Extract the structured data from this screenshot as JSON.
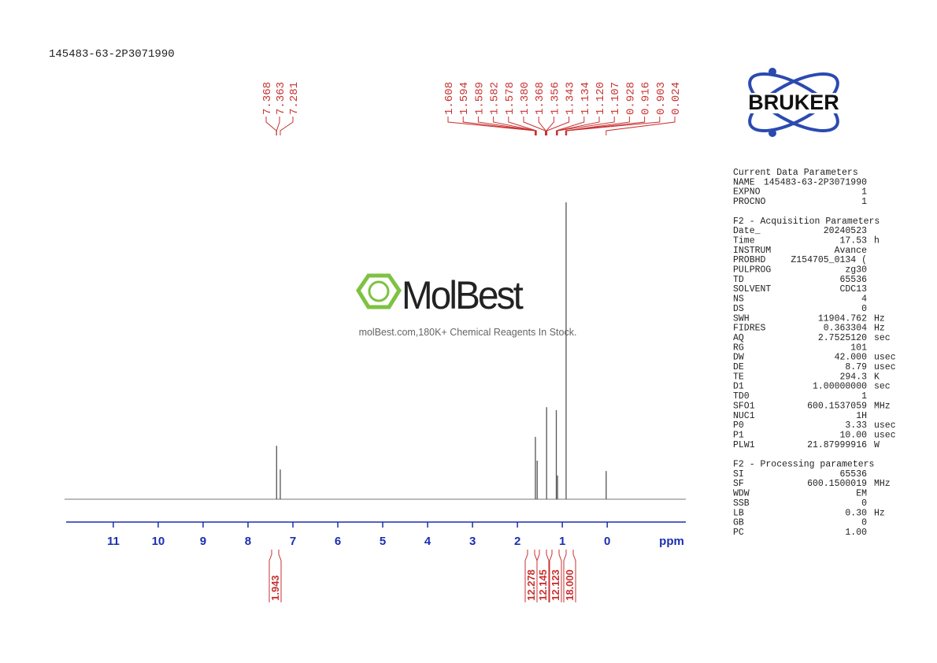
{
  "header": {
    "title": "145483-63-2P3071990"
  },
  "logo": {
    "text": "BRUKER"
  },
  "watermark": {
    "brand": "MolBest",
    "tagline": "molBest.com,180K+ Chemical Reagents In Stock."
  },
  "chart_data": {
    "type": "spectrum",
    "x_label": "ppm",
    "xlim": [
      12.05,
      -1.75
    ],
    "xticks": [
      11,
      10,
      9,
      8,
      7,
      6,
      5,
      4,
      3,
      2,
      1,
      0
    ],
    "ylim": [
      0,
      100
    ],
    "color": "#555555",
    "peaks": {
      "x": [
        7.363,
        7.281,
        1.6,
        1.56,
        1.35,
        1.134,
        1.107,
        0.916,
        0.024
      ],
      "values": [
        18,
        10,
        21,
        13,
        31,
        30,
        8,
        100,
        9.5
      ]
    },
    "peak_labels": {
      "values": [
        7.368,
        7.363,
        7.281,
        1.608,
        1.594,
        1.589,
        1.582,
        1.578,
        1.38,
        1.368,
        1.356,
        1.343,
        1.134,
        1.12,
        1.107,
        0.928,
        0.916,
        0.903,
        0.024
      ],
      "value_labels": [
        "7.368",
        "7.363",
        "7.281",
        "1.608",
        "1.594",
        "1.589",
        "1.582",
        "1.578",
        "1.380",
        "1.368",
        "1.356",
        "1.343",
        "1.134",
        "1.120",
        "1.107",
        "0.928",
        "0.916",
        "0.903",
        "0.024"
      ]
    },
    "integrals": {
      "values": [
        1.943,
        12.278,
        12.145,
        12.123,
        18
      ],
      "value_labels": [
        "1.943",
        "12.278",
        "12.145",
        "12.123",
        "18.000"
      ]
    }
  },
  "parameters": [
    {
      "title": "Current Data Parameters",
      "rows": [
        [
          "NAME",
          "145483-63-2P3071990"
        ],
        [
          "EXPNO",
          "1"
        ],
        [
          "PROCNO",
          "1"
        ]
      ]
    },
    {
      "title": "F2 - Acquisition Parameters",
      "rows": [
        [
          "Date_",
          "20240523"
        ],
        [
          "Time",
          "17.53",
          "h"
        ],
        [
          "INSTRUM",
          "Avance"
        ],
        [
          "PROBHD",
          "Z154705_0134 ("
        ],
        [
          "PULPROG",
          "zg30"
        ],
        [
          "TD",
          "65536"
        ],
        [
          "SOLVENT",
          "CDC13"
        ],
        [
          "NS",
          "4"
        ],
        [
          "DS",
          "0"
        ],
        [
          "SWH",
          "11904.762",
          "Hz"
        ],
        [
          "FIDRES",
          "0.363304",
          "Hz"
        ],
        [
          "AQ",
          "2.7525120",
          "sec"
        ],
        [
          "RG",
          "101"
        ],
        [
          "DW",
          "42.000",
          "usec"
        ],
        [
          "DE",
          "8.79",
          "usec"
        ],
        [
          "TE",
          "294.3",
          "K"
        ],
        [
          "D1",
          "1.00000000",
          "sec"
        ],
        [
          "TD0",
          "1"
        ],
        [
          "SFO1",
          "600.1537059",
          "MHz"
        ],
        [
          "NUC1",
          "1H"
        ],
        [
          "P0",
          "3.33",
          "usec"
        ],
        [
          "P1",
          "10.00",
          "usec"
        ],
        [
          "PLW1",
          "21.87999916",
          "W"
        ]
      ]
    },
    {
      "title": "F2 - Processing parameters",
      "rows": [
        [
          "SI",
          "65536"
        ],
        [
          "SF",
          "600.1500019",
          "MHz"
        ],
        [
          "WDW",
          "EM"
        ],
        [
          "SSB",
          "0"
        ],
        [
          "LB",
          "0.30",
          "Hz"
        ],
        [
          "GB",
          "0"
        ],
        [
          "PC",
          "1.00"
        ]
      ]
    }
  ]
}
